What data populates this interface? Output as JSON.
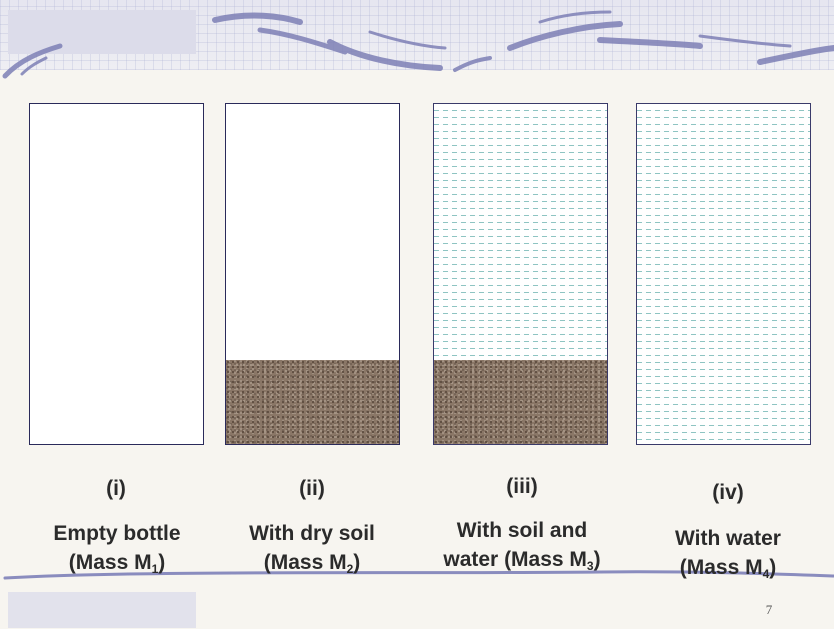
{
  "slide": {
    "page_number": "7"
  },
  "bottles": [
    {
      "numeral": "(i)",
      "caption_line1": "Empty bottle",
      "mass_prefix": "(Mass M",
      "mass_sub": "1",
      "mass_suffix": ")",
      "contents": {
        "water": false,
        "soil": false
      }
    },
    {
      "numeral": "(ii)",
      "caption_line1": "With dry soil",
      "mass_prefix": "(Mass M",
      "mass_sub": "2",
      "mass_suffix": ")",
      "contents": {
        "water": false,
        "soil": true
      }
    },
    {
      "numeral": "(iii)",
      "caption_line1": "With soil and",
      "mass_prefix": "water (Mass M",
      "mass_sub": "3",
      "mass_suffix": ")",
      "contents": {
        "water": true,
        "soil": true
      }
    },
    {
      "numeral": "(iv)",
      "caption_line1": "With water",
      "mass_prefix": "(Mass M",
      "mass_sub": "4",
      "mass_suffix": ")",
      "contents": {
        "water": true,
        "soil": false
      }
    }
  ],
  "colors": {
    "bottle_outline": "#2a2a5a",
    "soil": "#8a7767",
    "water_dash": "#8ec4c2",
    "text": "#2b2b2b"
  }
}
